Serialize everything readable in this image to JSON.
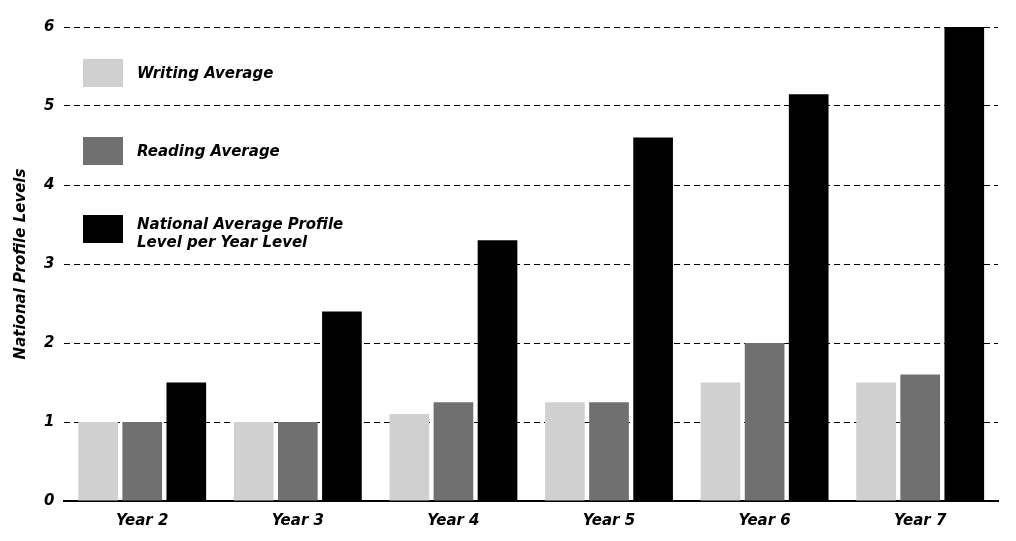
{
  "chart_data": {
    "type": "bar",
    "ylabel": "National Profile Levels",
    "categories": [
      "Year 2",
      "Year 3",
      "Year 4",
      "Year 5",
      "Year 6",
      "Year 7"
    ],
    "series": [
      {
        "name": "Writing Average",
        "color": "#d0d0d0",
        "values": [
          1.0,
          1.0,
          1.1,
          1.25,
          1.5,
          1.5
        ]
      },
      {
        "name": "Reading Average",
        "color": "#707070",
        "values": [
          1.0,
          1.0,
          1.25,
          1.25,
          2.0,
          1.6
        ]
      },
      {
        "name": "National Average Profile Level per Year Level",
        "color": "#000000",
        "values": [
          1.5,
          2.4,
          3.3,
          4.6,
          5.15,
          6.0
        ]
      }
    ],
    "ylim": [
      0,
      6
    ],
    "yticks": [
      0,
      1,
      2,
      3,
      4,
      5,
      6
    ],
    "grid": "y",
    "line_style": "dashed",
    "legend": "top left"
  }
}
